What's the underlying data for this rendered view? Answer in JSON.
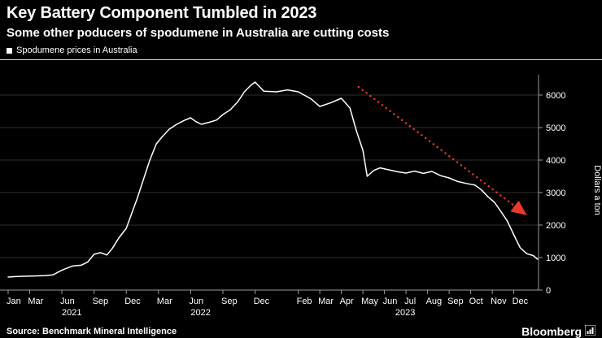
{
  "header": {
    "title": "Key Battery Component Tumbled in 2023",
    "subtitle": "Some other poducers of spodumene in Australia are cutting costs"
  },
  "legend": {
    "label": "Spodumene prices in Australia",
    "marker_color": "#ffffff"
  },
  "chart_data": {
    "type": "line",
    "title": "Spodumene prices in Australia",
    "ylabel": "Dollars a ton",
    "ylim": [
      0,
      6600
    ],
    "y_ticks": [
      0,
      1000,
      2000,
      3000,
      4000,
      5000,
      6000
    ],
    "line_color": "#ffffff",
    "grid_color": "#2e2e2e",
    "axis_color": "#9a9a9a",
    "x_ticks": [
      {
        "m": 0,
        "label": "Jan"
      },
      {
        "m": 2,
        "label": "Mar"
      },
      {
        "m": 5,
        "label": "Jun"
      },
      {
        "m": 8,
        "label": "Sep"
      },
      {
        "m": 11,
        "label": "Dec"
      },
      {
        "m": 14,
        "label": "Mar"
      },
      {
        "m": 17,
        "label": "Jun"
      },
      {
        "m": 20,
        "label": "Sep"
      },
      {
        "m": 23,
        "label": "Dec"
      },
      {
        "m": 25,
        "label": "Feb"
      },
      {
        "m": 26,
        "label": "Mar"
      },
      {
        "m": 27,
        "label": "Apr"
      },
      {
        "m": 28,
        "label": "May"
      },
      {
        "m": 29,
        "label": "Jun"
      },
      {
        "m": 30,
        "label": "Jul"
      },
      {
        "m": 31,
        "label": "Aug"
      },
      {
        "m": 32,
        "label": "Sep"
      },
      {
        "m": 33,
        "label": "Oct"
      },
      {
        "m": 34,
        "label": "Nov"
      },
      {
        "m": 35,
        "label": "Dec"
      }
    ],
    "year_labels": [
      {
        "m": 5,
        "label": "2021"
      },
      {
        "m": 17,
        "label": "2022"
      },
      {
        "m": 29.5,
        "label": "2023"
      }
    ],
    "points": [
      [
        0,
        400
      ],
      [
        0.7,
        415
      ],
      [
        1.5,
        425
      ],
      [
        2.5,
        435
      ],
      [
        3.5,
        445
      ],
      [
        4.2,
        470
      ],
      [
        4.7,
        560
      ],
      [
        5.2,
        640
      ],
      [
        6,
        740
      ],
      [
        6.8,
        765
      ],
      [
        7.4,
        860
      ],
      [
        8,
        1100
      ],
      [
        8.6,
        1150
      ],
      [
        9.2,
        1080
      ],
      [
        9.7,
        1280
      ],
      [
        10.3,
        1600
      ],
      [
        11,
        1900
      ],
      [
        11.5,
        2350
      ],
      [
        12,
        2800
      ],
      [
        12.6,
        3400
      ],
      [
        13.2,
        4000
      ],
      [
        13.8,
        4500
      ],
      [
        14.3,
        4700
      ],
      [
        15,
        4950
      ],
      [
        15.7,
        5100
      ],
      [
        16.4,
        5220
      ],
      [
        17,
        5300
      ],
      [
        17.5,
        5180
      ],
      [
        18,
        5100
      ],
      [
        18.7,
        5160
      ],
      [
        19.4,
        5230
      ],
      [
        20,
        5400
      ],
      [
        20.7,
        5550
      ],
      [
        21.4,
        5800
      ],
      [
        22,
        6100
      ],
      [
        22.6,
        6300
      ],
      [
        23,
        6400
      ],
      [
        23.4,
        6120
      ],
      [
        24,
        6100
      ],
      [
        24.5,
        6160
      ],
      [
        25,
        6100
      ],
      [
        25.6,
        5880
      ],
      [
        26,
        5650
      ],
      [
        26.5,
        5760
      ],
      [
        27,
        5900
      ],
      [
        27.4,
        5600
      ],
      [
        27.7,
        4900
      ],
      [
        28,
        4300
      ],
      [
        28.2,
        3500
      ],
      [
        28.5,
        3680
      ],
      [
        28.8,
        3760
      ],
      [
        29.2,
        3700
      ],
      [
        29.6,
        3640
      ],
      [
        30,
        3600
      ],
      [
        30.4,
        3660
      ],
      [
        30.8,
        3590
      ],
      [
        31.2,
        3650
      ],
      [
        31.6,
        3520
      ],
      [
        32,
        3450
      ],
      [
        32.4,
        3340
      ],
      [
        32.8,
        3280
      ],
      [
        33.2,
        3230
      ],
      [
        33.5,
        3080
      ],
      [
        33.8,
        2870
      ],
      [
        34.1,
        2700
      ],
      [
        34.4,
        2420
      ],
      [
        34.7,
        2120
      ],
      [
        35,
        1700
      ],
      [
        35.3,
        1300
      ],
      [
        35.6,
        1120
      ],
      [
        35.9,
        1060
      ],
      [
        36.1,
        950
      ]
    ],
    "trend_arrow": {
      "from": [
        27.8,
        6250
      ],
      "to": [
        35.5,
        2350
      ],
      "color": "#e8392c"
    }
  },
  "footer": {
    "source": "Source: Benchmark Mineral Intelligence",
    "brand": "Bloomberg"
  }
}
